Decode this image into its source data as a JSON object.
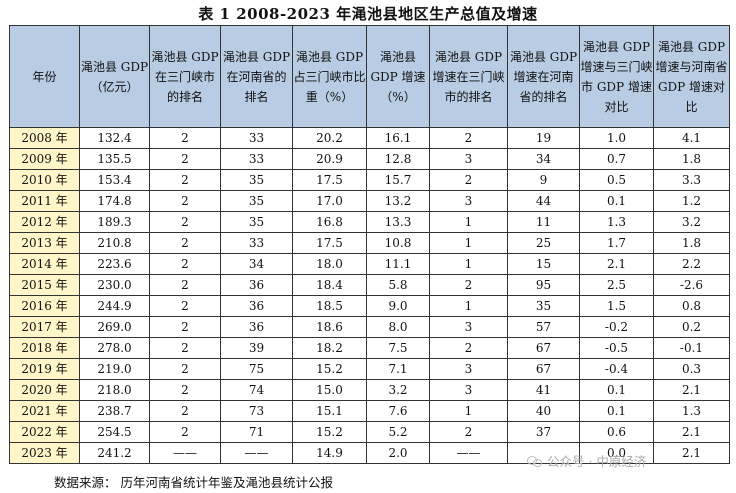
{
  "title": "表 1  2008-2023 年渑池县地区生产总值及增速",
  "columns": [
    "年份",
    "渑池县 GDP（亿元）",
    "渑池县 GDP 在三门峡市的排名",
    "渑池县 GDP 在河南省的排名",
    "渑池县 GDP 占三门峡市比重（%）",
    "渑池县 GDP 增速（%）",
    "渑池县 GDP 增速在三门峡市的排名",
    "渑池县 GDP 增速在河南省的排名",
    "渑池县 GDP 增速与三门峡市 GDP 增速对比",
    "渑池县 GDP 增速与河南省 GDP 增速对比"
  ],
  "rows": [
    [
      "2008 年",
      "132.4",
      "2",
      "33",
      "20.2",
      "16.1",
      "2",
      "19",
      "1.0",
      "4.1"
    ],
    [
      "2009 年",
      "135.5",
      "2",
      "33",
      "20.9",
      "12.8",
      "3",
      "34",
      "0.7",
      "1.8"
    ],
    [
      "2010 年",
      "153.4",
      "2",
      "35",
      "17.5",
      "15.7",
      "2",
      "9",
      "0.5",
      "3.3"
    ],
    [
      "2011 年",
      "174.8",
      "2",
      "35",
      "17.0",
      "13.2",
      "3",
      "44",
      "0.1",
      "1.2"
    ],
    [
      "2012 年",
      "189.3",
      "2",
      "35",
      "16.8",
      "13.3",
      "1",
      "11",
      "1.3",
      "3.2"
    ],
    [
      "2013 年",
      "210.8",
      "2",
      "33",
      "17.5",
      "10.8",
      "1",
      "25",
      "1.7",
      "1.8"
    ],
    [
      "2014 年",
      "223.6",
      "2",
      "34",
      "18.0",
      "11.1",
      "1",
      "15",
      "2.1",
      "2.2"
    ],
    [
      "2015 年",
      "230.0",
      "2",
      "36",
      "18.4",
      "5.8",
      "2",
      "95",
      "2.5",
      "-2.6"
    ],
    [
      "2016 年",
      "244.9",
      "2",
      "36",
      "18.5",
      "9.0",
      "1",
      "35",
      "1.5",
      "0.8"
    ],
    [
      "2017 年",
      "269.0",
      "2",
      "36",
      "18.6",
      "8.0",
      "3",
      "57",
      "-0.2",
      "0.2"
    ],
    [
      "2018 年",
      "278.0",
      "2",
      "39",
      "18.2",
      "7.5",
      "2",
      "67",
      "-0.5",
      "-0.1"
    ],
    [
      "2019 年",
      "219.0",
      "2",
      "75",
      "15.2",
      "7.1",
      "3",
      "67",
      "-0.4",
      "0.3"
    ],
    [
      "2020 年",
      "218.0",
      "2",
      "74",
      "15.0",
      "3.2",
      "3",
      "41",
      "0.1",
      "2.1"
    ],
    [
      "2021 年",
      "238.7",
      "2",
      "73",
      "15.1",
      "7.6",
      "1",
      "40",
      "0.1",
      "1.3"
    ],
    [
      "2022 年",
      "254.5",
      "2",
      "71",
      "15.2",
      "5.2",
      "2",
      "37",
      "0.6",
      "2.1"
    ],
    [
      "2023 年",
      "241.2",
      "——",
      "——",
      "14.9",
      "2.0",
      "——",
      "",
      "0.0",
      "2.1"
    ]
  ],
  "source": "数据来源：   历年河南省统计年鉴及渑池县统计公报",
  "watermark": "公众号 · 中原经济",
  "colors": {
    "header_bg": "#b8cce4",
    "year_bg": "#fef5c8",
    "border": "#333333"
  }
}
